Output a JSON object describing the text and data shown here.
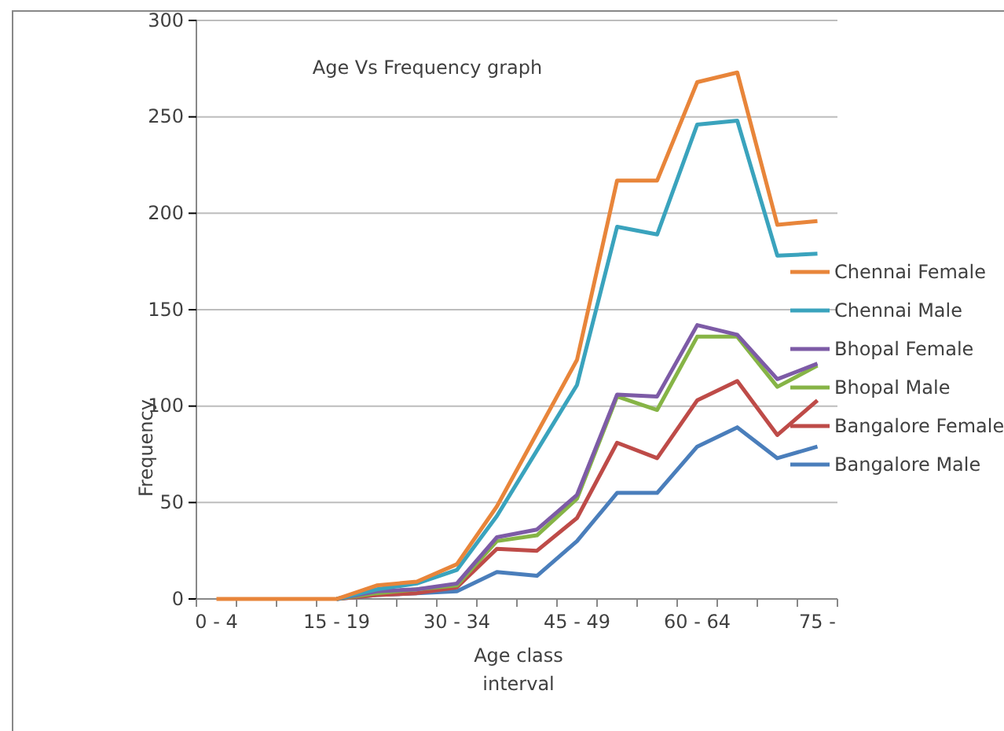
{
  "chart_data": {
    "type": "line",
    "title": "Age Vs Frequency graph",
    "xlabel": "Age class interval",
    "ylabel": "Frequency",
    "categories": [
      "0 - 4",
      null,
      null,
      "15 - 19",
      null,
      null,
      "30 - 34",
      null,
      null,
      "45 - 49",
      null,
      null,
      "60 - 64",
      null,
      null,
      "75 -"
    ],
    "ylim": [
      0,
      300
    ],
    "yticks": [
      0,
      50,
      100,
      150,
      200,
      250,
      300
    ],
    "grid": "y",
    "legend": "right",
    "marker": "none",
    "line_style": "solid",
    "series": [
      {
        "name": "Chennai Female",
        "color": "#e8853a",
        "values": [
          0,
          0,
          0,
          0,
          7,
          9,
          18,
          48,
          86,
          124,
          217,
          217,
          268,
          273,
          194,
          196
        ]
      },
      {
        "name": "Chennai Male",
        "color": "#3aa3bd",
        "values": [
          null,
          null,
          null,
          0,
          5,
          8,
          15,
          43,
          77,
          111,
          193,
          189,
          246,
          248,
          178,
          179
        ]
      },
      {
        "name": "Bhopal Female",
        "color": "#7d5ba6",
        "values": [
          null,
          null,
          null,
          0,
          4,
          5,
          8,
          32,
          36,
          54,
          106,
          105,
          142,
          137,
          114,
          122
        ]
      },
      {
        "name": "Bhopal Male",
        "color": "#86b446",
        "values": [
          null,
          null,
          null,
          0,
          3,
          5,
          7,
          30,
          33,
          52,
          105,
          98,
          136,
          136,
          110,
          121
        ]
      },
      {
        "name": "Bangalore Female",
        "color": "#be4b48",
        "values": [
          null,
          null,
          null,
          0,
          2,
          3,
          6,
          26,
          25,
          42,
          81,
          73,
          103,
          113,
          85,
          103
        ]
      },
      {
        "name": "Bangalore Male",
        "color": "#4a7ebb",
        "values": [
          null,
          null,
          null,
          0,
          2,
          3,
          4,
          14,
          12,
          30,
          55,
          55,
          79,
          89,
          73,
          79
        ]
      }
    ]
  }
}
